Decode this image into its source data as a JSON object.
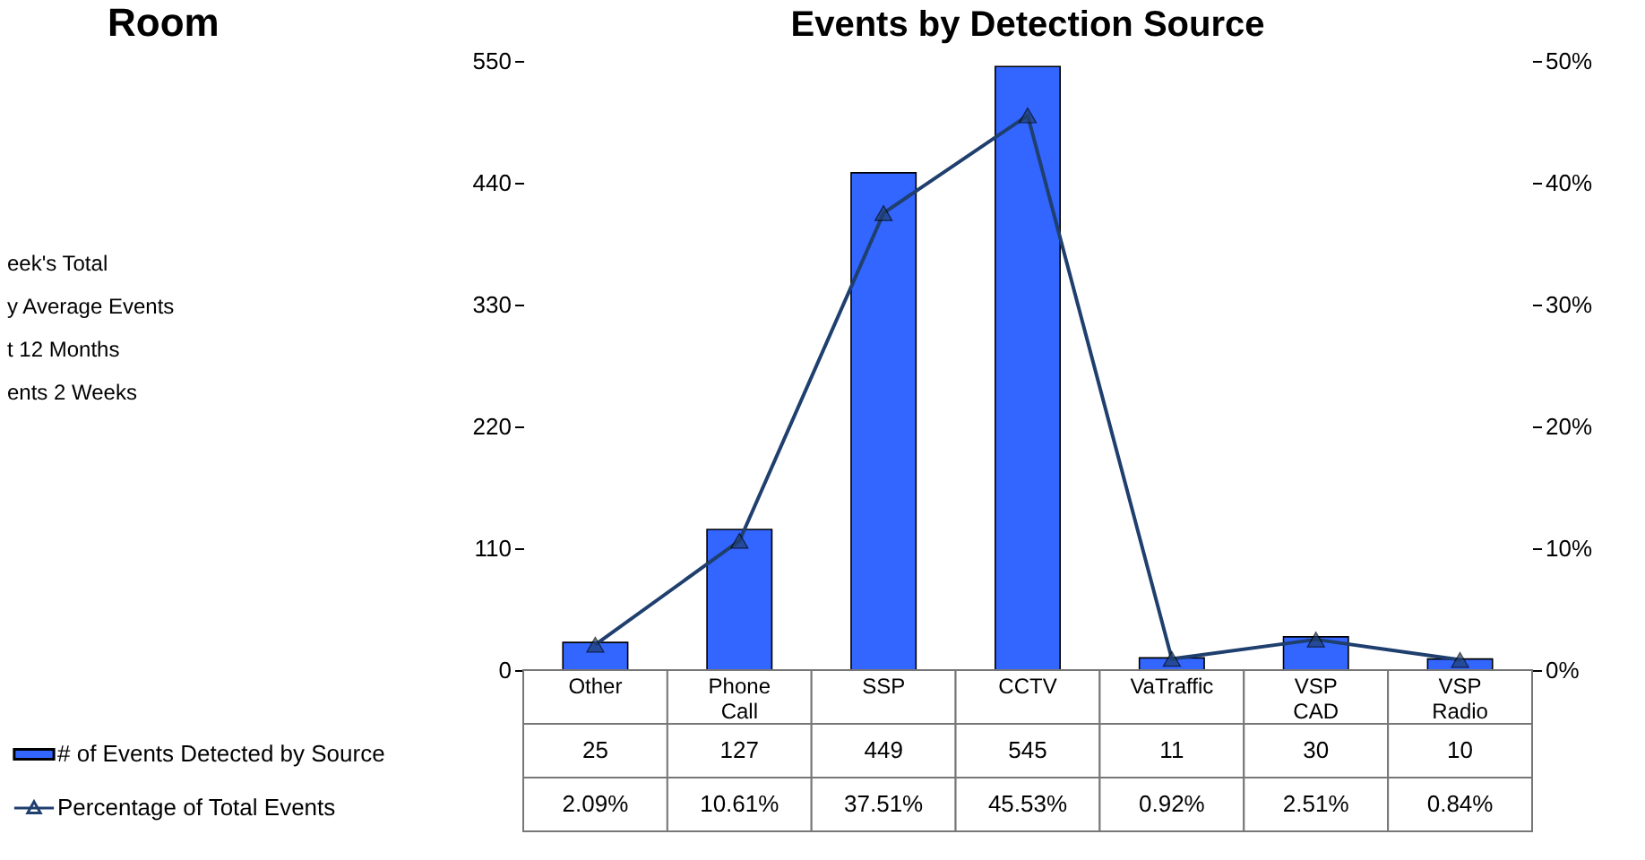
{
  "chart_data": {
    "type": "bar",
    "title": "Events by Detection Source",
    "categories": [
      "Other",
      "Phone Call",
      "SSP",
      "CCTV",
      "VaTraffic",
      "VSP CAD",
      "VSP Radio"
    ],
    "series": [
      {
        "name": "# of Events Detected by Source",
        "color": "#3366ff",
        "values": [
          25,
          127,
          449,
          545,
          11,
          30,
          10
        ],
        "value_labels": [
          "25",
          "127",
          "449",
          "545",
          "11",
          "30",
          "10"
        ]
      },
      {
        "name": "Percentage of Total Events",
        "type": "line",
        "axis": "y2",
        "color": "#1f3f6e",
        "values": [
          2.09,
          10.61,
          37.51,
          45.53,
          0.92,
          2.51,
          0.84
        ],
        "value_labels": [
          "2.09%",
          "10.61%",
          "37.51%",
          "45.53%",
          "0.92%",
          "2.51%",
          "0.84%"
        ]
      }
    ],
    "ylim": [
      0,
      550
    ],
    "yticks": [
      0,
      110,
      220,
      330,
      440,
      550
    ],
    "y2lim": [
      0,
      50
    ],
    "y2ticks": [
      {
        "value": 0,
        "label": "0%"
      },
      {
        "value": 10,
        "label": "10%"
      },
      {
        "value": 20,
        "label": "20%"
      },
      {
        "value": 30,
        "label": "30%"
      },
      {
        "value": 40,
        "label": "40%"
      },
      {
        "value": 50,
        "label": "50%"
      }
    ],
    "marker": "triangle",
    "legend": "bottom left",
    "annotations": [
      "Room",
      "eek's Total",
      "y Average Events",
      "t 12 Months",
      "ents 2 Weeks"
    ]
  }
}
